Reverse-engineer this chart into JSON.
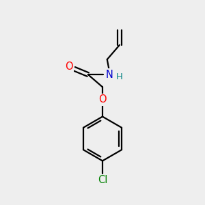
{
  "background_color": "#eeeeee",
  "bond_color": "#000000",
  "O_color": "#ff0000",
  "N_color": "#0000cc",
  "H_color": "#008080",
  "Cl_color": "#008000",
  "figsize": [
    3.0,
    3.0
  ],
  "dpi": 100,
  "xlim": [
    0,
    10
  ],
  "ylim": [
    0,
    10
  ],
  "lw": 1.6,
  "fs": 10.5
}
